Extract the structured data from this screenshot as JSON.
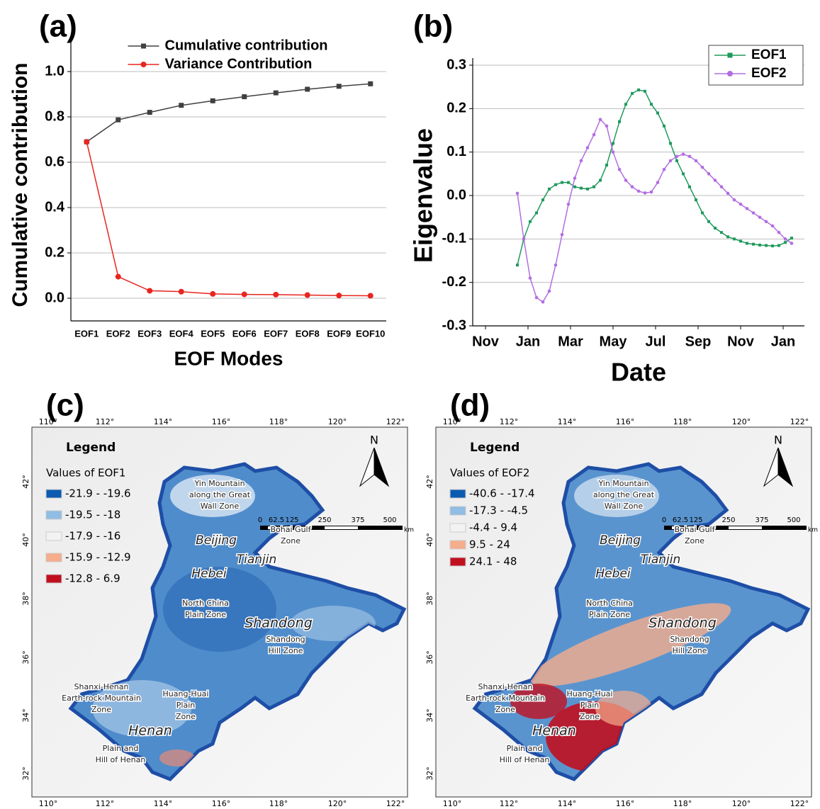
{
  "chart_data": [
    {
      "type": "line",
      "title": "(a)",
      "x_label": "EOF Modes",
      "y_label": "Cumulative contribution",
      "categories": [
        "EOF1",
        "EOF2",
        "EOF3",
        "EOF4",
        "EOF5",
        "EOF6",
        "EOF7",
        "EOF8",
        "EOF9",
        "EOF10"
      ],
      "series": [
        {
          "name": "Cumulative contribution",
          "color": "#404040",
          "marker": "square",
          "values": [
            0.69,
            0.787,
            0.82,
            0.851,
            0.871,
            0.889,
            0.906,
            0.922,
            0.935,
            0.946
          ]
        },
        {
          "name": "Variance Contribution",
          "color": "#e8251f",
          "marker": "circle",
          "values": [
            0.69,
            0.095,
            0.033,
            0.029,
            0.019,
            0.017,
            0.016,
            0.014,
            0.012,
            0.011
          ]
        }
      ],
      "ylim": [
        -0.1,
        1.1
      ],
      "yticks": [
        {
          "value": 0,
          "label": "0.0"
        },
        0.2,
        0.4,
        0.6,
        0.8,
        {
          "value": 1,
          "label": "1.0"
        }
      ],
      "grid": true,
      "legend": "upper center"
    },
    {
      "type": "line",
      "title": "(b)",
      "x_label": "Date",
      "y_label": "Eigenvalue",
      "x": [
        1.5,
        1.8,
        2.1,
        2.4,
        2.7,
        3.0,
        3.3,
        3.6,
        3.9,
        4.2,
        4.5,
        4.8,
        5.1,
        5.4,
        5.7,
        6.0,
        6.3,
        6.6,
        6.9,
        7.2,
        7.5,
        7.8,
        8.1,
        8.4,
        8.7,
        9.0,
        9.3,
        9.6,
        9.9,
        10.2,
        10.5,
        10.8,
        11.1,
        11.4,
        11.7,
        12.0,
        12.3,
        12.6,
        12.9,
        13.2,
        13.5,
        13.8,
        14.1,
        14.4
      ],
      "series": [
        {
          "name": "EOF1",
          "color": "#1f9a5c",
          "marker": "square",
          "values": [
            -0.16,
            -0.1,
            -0.06,
            -0.04,
            -0.01,
            0.015,
            0.025,
            0.03,
            0.03,
            0.02,
            0.017,
            0.015,
            0.02,
            0.035,
            0.07,
            0.12,
            0.17,
            0.21,
            0.235,
            0.243,
            0.24,
            0.21,
            0.19,
            0.16,
            0.12,
            0.08,
            0.05,
            0.02,
            -0.01,
            -0.04,
            -0.06,
            -0.075,
            -0.085,
            -0.095,
            -0.1,
            -0.105,
            -0.11,
            -0.112,
            -0.114,
            -0.115,
            -0.116,
            -0.115,
            -0.108,
            -0.098
          ]
        },
        {
          "name": "EOF2",
          "color": "#b26ee0",
          "marker": "circle",
          "values": [
            0.005,
            -0.1,
            -0.19,
            -0.235,
            -0.245,
            -0.22,
            -0.16,
            -0.09,
            -0.02,
            0.04,
            0.08,
            0.11,
            0.14,
            0.175,
            0.16,
            0.1,
            0.06,
            0.035,
            0.02,
            0.01,
            0.006,
            0.008,
            0.03,
            0.06,
            0.08,
            0.09,
            0.095,
            0.09,
            0.08,
            0.065,
            0.05,
            0.035,
            0.02,
            0.005,
            -0.01,
            -0.02,
            -0.03,
            -0.04,
            -0.05,
            -0.06,
            -0.07,
            -0.085,
            -0.1,
            -0.11
          ]
        }
      ],
      "xlim": [
        -0.6,
        15
      ],
      "xticks": [
        {
          "value": 0,
          "label": "Nov"
        },
        {
          "value": 2,
          "label": "Jan"
        },
        {
          "value": 4,
          "label": "Mar"
        },
        {
          "value": 6,
          "label": "May"
        },
        {
          "value": 8,
          "label": "Jul"
        },
        {
          "value": 10,
          "label": "Sep"
        },
        {
          "value": 12,
          "label": "Nov"
        },
        {
          "value": 14,
          "label": "Jan"
        }
      ],
      "ylim": [
        -0.3,
        0.3
      ],
      "yticks": [
        0.3,
        0.2,
        0.1,
        {
          "value": 0,
          "label": "0.0"
        },
        -0.1,
        -0.2,
        -0.3
      ],
      "grid": true,
      "legend": "upper right"
    }
  ],
  "maps": [
    {
      "panel": "(c)",
      "legend_title": "Legend",
      "legend_subtitle": "Values of EOF1",
      "classes": [
        {
          "label": "-21.9 - -19.6",
          "color": "#0b5bb0"
        },
        {
          "label": "-19.5 - -18",
          "color": "#8fbde3"
        },
        {
          "label": "-17.9 - -16",
          "color": "#f2f2f2"
        },
        {
          "label": "-15.9 - -12.9",
          "color": "#f5ad8c"
        },
        {
          "label": "-12.8 - 6.9",
          "color": "#c0101f"
        }
      ]
    },
    {
      "panel": "(d)",
      "legend_title": "Legend",
      "legend_subtitle": "Values of EOF2",
      "classes": [
        {
          "label": "-40.6 - -17.4",
          "color": "#0b5bb0"
        },
        {
          "label": "-17.3 - -4.5",
          "color": "#8fbde3"
        },
        {
          "label": "-4.4 - 9.4",
          "color": "#f2f2f2"
        },
        {
          "label": "9.5 - 24",
          "color": "#f5ad8c"
        },
        {
          "label": "24.1 - 48",
          "color": "#c0101f"
        }
      ]
    }
  ],
  "map_common": {
    "north": "N",
    "lon_ticks": [
      "110°",
      "112°",
      "114°",
      "116°",
      "118°",
      "120°",
      "122°"
    ],
    "lat_ticks": [
      "42°",
      "40°",
      "38°",
      "36°",
      "34°",
      "32°"
    ],
    "scale_labels": [
      "0",
      "62.5",
      "125",
      "250",
      "375",
      "500",
      "km"
    ],
    "places": [
      {
        "lines": [
          "Yin Mountain",
          "along the Great",
          "Wall Zone"
        ],
        "italic": false
      },
      {
        "lines": [
          "Beijing"
        ],
        "italic": true
      },
      {
        "lines": [
          "Bohai Gulf",
          "Zone"
        ],
        "italic": false
      },
      {
        "lines": [
          "Tianjin"
        ],
        "italic": true
      },
      {
        "lines": [
          "Hebei"
        ],
        "italic": true
      },
      {
        "lines": [
          "North China",
          "Plain Zone"
        ],
        "italic": false
      },
      {
        "lines": [
          "Shandong"
        ],
        "italic": true
      },
      {
        "lines": [
          "Shandong",
          "Hill Zone"
        ],
        "italic": false
      },
      {
        "lines": [
          "Shanxi-Henan",
          "Earth-rock Mountain",
          "Zone"
        ],
        "italic": false
      },
      {
        "lines": [
          "Huang-Huai",
          "Plain",
          "Zone"
        ],
        "italic": false
      },
      {
        "lines": [
          "Henan"
        ],
        "italic": true
      },
      {
        "lines": [
          "Plain and",
          "Hill of Henan"
        ],
        "italic": false
      }
    ]
  }
}
